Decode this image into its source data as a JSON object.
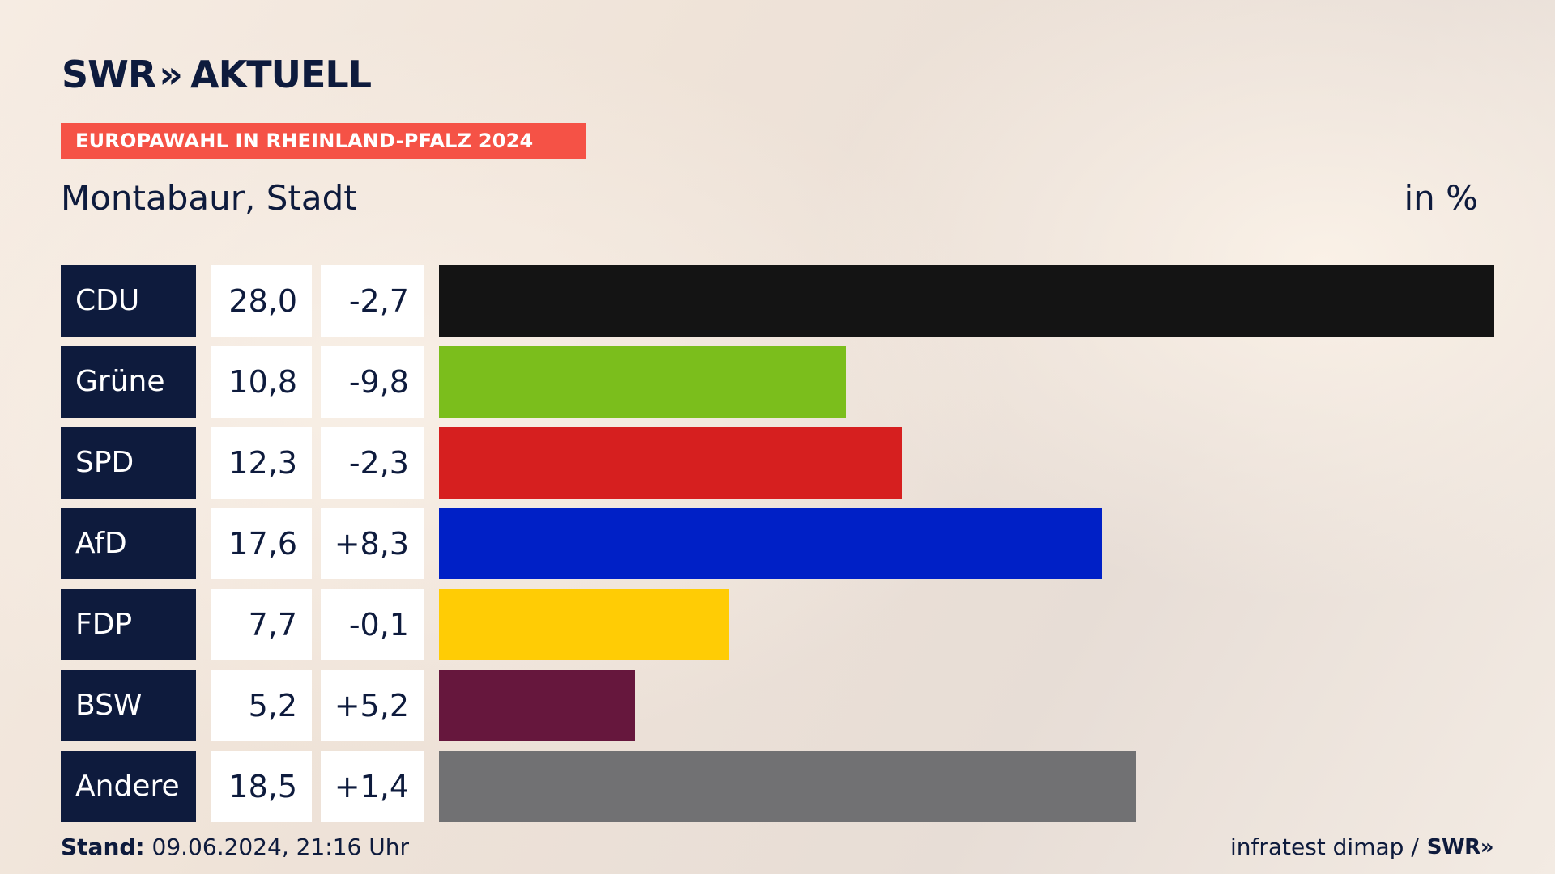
{
  "header": {
    "logo_text": "SWR",
    "logo_chevrons": "»",
    "logo_suffix": "AKTUELL",
    "tag": "EUROPAWAHL IN RHEINLAND-PFALZ 2024",
    "subtitle": "Montabaur, Stadt",
    "unit": "in %"
  },
  "footer": {
    "stand_label": "Stand:",
    "stand_value": "09.06.2024, 21:16 Uhr",
    "source": "infratest dimap /",
    "source_logo": "SWR",
    "source_logo_chevrons": "»"
  },
  "colors": {
    "navy": "#0e1b3d",
    "tag": "#f55246"
  },
  "chart_data": {
    "type": "bar",
    "orientation": "horizontal",
    "categories": [
      "CDU",
      "Grüne",
      "SPD",
      "AfD",
      "FDP",
      "BSW",
      "Andere"
    ],
    "values": [
      28.0,
      10.8,
      12.3,
      17.6,
      7.7,
      5.2,
      18.5
    ],
    "value_labels": [
      "28,0",
      "10,8",
      "12,3",
      "17,6",
      "7,7",
      "5,2",
      "18,5"
    ],
    "diff_labels": [
      "-2,7",
      "-9,8",
      "-2,3",
      "+8,3",
      "-0,1",
      "+5,2",
      "+1,4"
    ],
    "colors": [
      "#141414",
      "#7bbe1c",
      "#d61f1f",
      "#0020c6",
      "#ffcc05",
      "#66173d",
      "#717173"
    ],
    "xlim": [
      0,
      28.0
    ],
    "grid": false,
    "legend": "none"
  }
}
